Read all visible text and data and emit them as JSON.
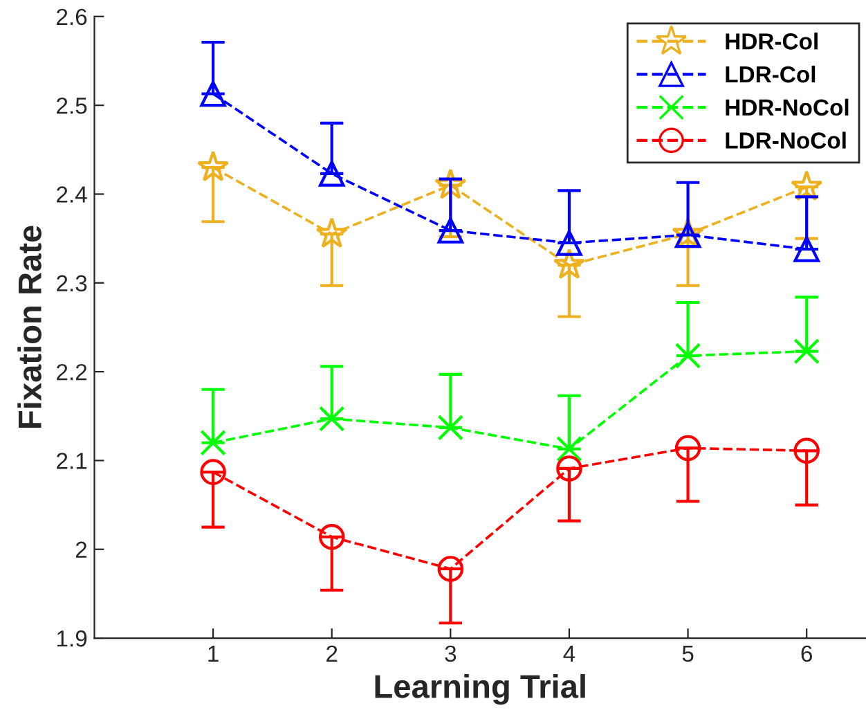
{
  "chart_data": {
    "type": "line",
    "xlabel": "Learning Trial",
    "ylabel": "Fixation Rate",
    "x": [
      1,
      2,
      3,
      4,
      5,
      6
    ],
    "xlim": [
      0,
      6.5
    ],
    "xticks": [
      1,
      2,
      3,
      4,
      5,
      6
    ],
    "ylim": [
      1.9,
      2.6
    ],
    "yticks": [
      1.9,
      2,
      2.1,
      2.2,
      2.3,
      2.4,
      2.5,
      2.6
    ],
    "line_style": "dashed",
    "legend": "top right",
    "grid": false,
    "series": [
      {
        "name": "HDR-Col",
        "color": "#edb120",
        "marker": "star",
        "values": [
          2.43,
          2.355,
          2.41,
          2.32,
          2.355,
          2.408
        ],
        "errors": [
          [
            2.369,
            2.43
          ],
          [
            2.297,
            2.355
          ],
          [
            2.352,
            2.41
          ],
          [
            2.262,
            2.32
          ],
          [
            2.297,
            2.355
          ],
          [
            2.35,
            2.408
          ]
        ]
      },
      {
        "name": "LDR-Col",
        "color": "#0000ff",
        "marker": "triangle",
        "values": [
          2.513,
          2.423,
          2.359,
          2.345,
          2.354,
          2.338
        ],
        "errors": [
          [
            2.513,
            2.571
          ],
          [
            2.423,
            2.48
          ],
          [
            2.359,
            2.417
          ],
          [
            2.345,
            2.404
          ],
          [
            2.354,
            2.413
          ],
          [
            2.338,
            2.397
          ]
        ]
      },
      {
        "name": "HDR-NoCol",
        "color": "#00ff00",
        "marker": "cross",
        "values": [
          2.12,
          2.147,
          2.137,
          2.113,
          2.218,
          2.223
        ],
        "errors": [
          [
            2.12,
            2.18
          ],
          [
            2.147,
            2.206
          ],
          [
            2.137,
            2.197
          ],
          [
            2.113,
            2.173
          ],
          [
            2.218,
            2.278
          ],
          [
            2.223,
            2.284
          ]
        ]
      },
      {
        "name": "LDR-NoCol",
        "color": "#ff0000",
        "marker": "circle",
        "values": [
          2.087,
          2.014,
          1.978,
          2.091,
          2.114,
          2.111
        ],
        "errors": [
          [
            2.025,
            2.087
          ],
          [
            1.954,
            2.014
          ],
          [
            1.917,
            1.978
          ],
          [
            2.032,
            2.091
          ],
          [
            2.054,
            2.114
          ],
          [
            2.05,
            2.111
          ]
        ]
      }
    ]
  }
}
